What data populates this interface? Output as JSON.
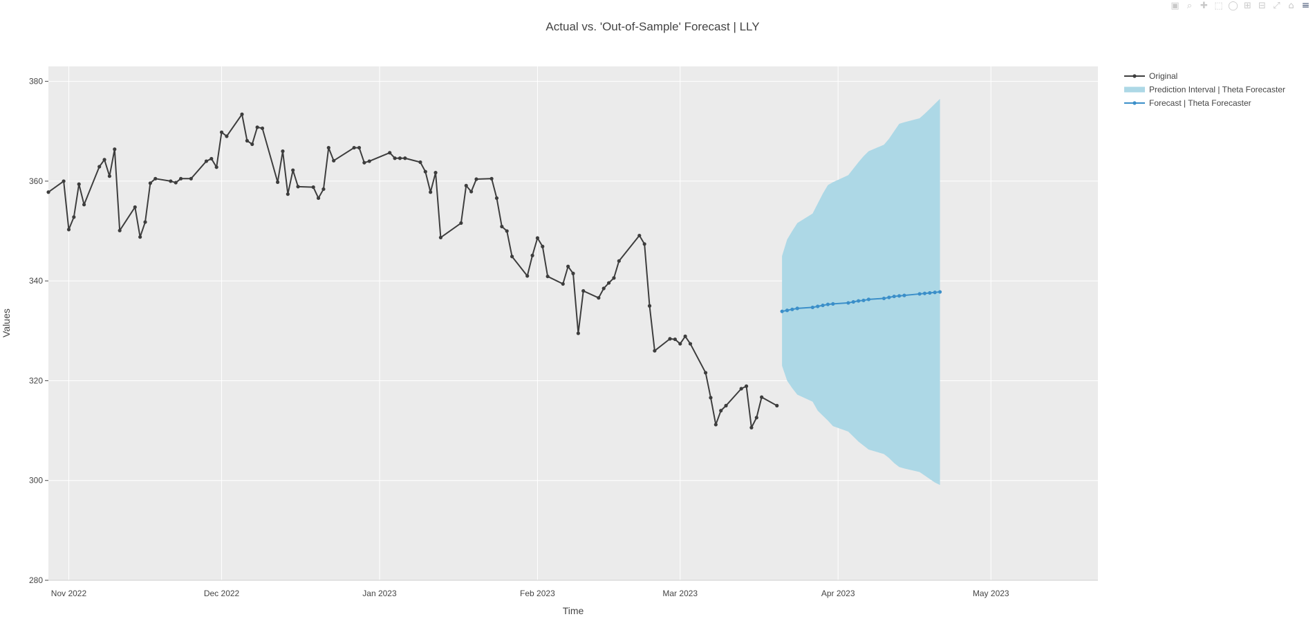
{
  "modebar": {
    "buttons": [
      {
        "name": "camera-icon",
        "glyph": "▣"
      },
      {
        "name": "zoom-icon",
        "glyph": "⌕"
      },
      {
        "name": "pan-icon",
        "glyph": "✚"
      },
      {
        "name": "box-select-icon",
        "glyph": "⬚"
      },
      {
        "name": "lasso-select-icon",
        "glyph": "◯"
      },
      {
        "name": "zoom-in-icon",
        "glyph": "⊞"
      },
      {
        "name": "zoom-out-icon",
        "glyph": "⊟"
      },
      {
        "name": "autoscale-icon",
        "glyph": "⤢"
      },
      {
        "name": "reset-axes-icon",
        "glyph": "⌂"
      },
      {
        "name": "plotly-logo-icon",
        "glyph": "≡"
      }
    ]
  },
  "colors": {
    "plot_bg": "#ebebeb",
    "grid": "#ffffff",
    "original": "#3d3d3d",
    "forecast": "#3b8fc9",
    "interval": "#add8e6"
  },
  "chart_data": {
    "type": "line",
    "title": "Actual vs. 'Out-of-Sample' Forecast | LLY",
    "xlabel": "Time",
    "ylabel": "Values",
    "xlim": [
      "2022-10-28",
      "2023-05-22"
    ],
    "ylim": [
      280,
      383
    ],
    "x_ticks": [
      {
        "date": "2022-11-01",
        "label": "Nov 2022"
      },
      {
        "date": "2022-12-01",
        "label": "Dec 2022"
      },
      {
        "date": "2023-01-01",
        "label": "Jan 2023"
      },
      {
        "date": "2023-02-01",
        "label": "Feb 2023"
      },
      {
        "date": "2023-03-01",
        "label": "Mar 2023"
      },
      {
        "date": "2023-04-01",
        "label": "Apr 2023"
      },
      {
        "date": "2023-05-01",
        "label": "May 2023"
      }
    ],
    "y_ticks": [
      280,
      300,
      320,
      340,
      360,
      380
    ],
    "grid": true,
    "legend_position": "top-right",
    "series": [
      {
        "name": "Original",
        "kind": "line-markers",
        "x": [
          "2022-10-28",
          "2022-10-31",
          "2022-11-01",
          "2022-11-02",
          "2022-11-03",
          "2022-11-04",
          "2022-11-07",
          "2022-11-08",
          "2022-11-09",
          "2022-11-10",
          "2022-11-11",
          "2022-11-14",
          "2022-11-15",
          "2022-11-16",
          "2022-11-17",
          "2022-11-18",
          "2022-11-21",
          "2022-11-22",
          "2022-11-23",
          "2022-11-25",
          "2022-11-28",
          "2022-11-29",
          "2022-11-30",
          "2022-12-01",
          "2022-12-02",
          "2022-12-05",
          "2022-12-06",
          "2022-12-07",
          "2022-12-08",
          "2022-12-09",
          "2022-12-12",
          "2022-12-13",
          "2022-12-14",
          "2022-12-15",
          "2022-12-16",
          "2022-12-19",
          "2022-12-20",
          "2022-12-21",
          "2022-12-22",
          "2022-12-23",
          "2022-12-27",
          "2022-12-28",
          "2022-12-29",
          "2022-12-30",
          "2023-01-03",
          "2023-01-04",
          "2023-01-05",
          "2023-01-06",
          "2023-01-09",
          "2023-01-10",
          "2023-01-11",
          "2023-01-12",
          "2023-01-13",
          "2023-01-17",
          "2023-01-18",
          "2023-01-19",
          "2023-01-20",
          "2023-01-23",
          "2023-01-24",
          "2023-01-25",
          "2023-01-26",
          "2023-01-27",
          "2023-01-30",
          "2023-01-31",
          "2023-02-01",
          "2023-02-02",
          "2023-02-03",
          "2023-02-06",
          "2023-02-07",
          "2023-02-08",
          "2023-02-09",
          "2023-02-10",
          "2023-02-13",
          "2023-02-14",
          "2023-02-15",
          "2023-02-16",
          "2023-02-17",
          "2023-02-21",
          "2023-02-22",
          "2023-02-23",
          "2023-02-24",
          "2023-02-27",
          "2023-02-28",
          "2023-03-01",
          "2023-03-02",
          "2023-03-03",
          "2023-03-06",
          "2023-03-07",
          "2023-03-08",
          "2023-03-09",
          "2023-03-10",
          "2023-03-13",
          "2023-03-14",
          "2023-03-15",
          "2023-03-16",
          "2023-03-17",
          "2023-03-20"
        ],
        "y": [
          357.8,
          360.0,
          350.3,
          352.8,
          359.4,
          355.3,
          362.9,
          364.3,
          361.0,
          366.4,
          350.1,
          354.8,
          348.8,
          351.8,
          359.6,
          360.5,
          360.0,
          359.7,
          360.5,
          360.5,
          364.0,
          364.5,
          362.8,
          369.8,
          369.0,
          373.4,
          368.1,
          367.4,
          370.8,
          370.6,
          359.8,
          366.0,
          357.4,
          362.2,
          358.9,
          358.8,
          356.6,
          358.4,
          366.7,
          364.1,
          366.7,
          366.7,
          363.7,
          364.0,
          365.7,
          364.6,
          364.6,
          364.6,
          363.8,
          361.9,
          357.8,
          361.7,
          348.7,
          351.6,
          359.1,
          357.9,
          360.4,
          360.5,
          356.6,
          350.9,
          350.0,
          344.9,
          341.0,
          345.1,
          348.6,
          346.9,
          340.9,
          339.4,
          342.9,
          341.5,
          329.5,
          338.0,
          336.6,
          338.5,
          339.6,
          340.6,
          344.0,
          349.1,
          347.4,
          335.0,
          326.0,
          328.4,
          328.3,
          327.4,
          328.9,
          327.4,
          321.6,
          316.6,
          311.2,
          314.0,
          315.0,
          318.4,
          318.9,
          310.6,
          312.6,
          316.7,
          315.0
        ]
      },
      {
        "name": "Prediction Interval | Theta Forecaster",
        "kind": "band",
        "x": [
          "2023-03-21",
          "2023-03-22",
          "2023-03-23",
          "2023-03-24",
          "2023-03-27",
          "2023-03-28",
          "2023-03-29",
          "2023-03-30",
          "2023-03-31",
          "2023-04-03",
          "2023-04-04",
          "2023-04-05",
          "2023-04-06",
          "2023-04-07",
          "2023-04-10",
          "2023-04-11",
          "2023-04-12",
          "2023-04-13",
          "2023-04-14",
          "2023-04-17",
          "2023-04-18",
          "2023-04-19",
          "2023-04-20",
          "2023-04-21"
        ],
        "lower": [
          323.0,
          320.0,
          318.5,
          317.2,
          315.8,
          314.0,
          313.0,
          312.0,
          310.9,
          309.8,
          308.8,
          307.8,
          307.0,
          306.2,
          305.3,
          304.5,
          303.5,
          302.7,
          302.4,
          301.7,
          301.0,
          300.3,
          299.6,
          299.1
        ],
        "upper": [
          345.0,
          348.3,
          350.0,
          351.6,
          353.5,
          355.5,
          357.5,
          359.2,
          359.8,
          361.2,
          362.5,
          363.8,
          365.0,
          366.0,
          367.3,
          368.5,
          370.0,
          371.5,
          371.8,
          372.6,
          373.5,
          374.5,
          375.5,
          376.5
        ]
      },
      {
        "name": "Forecast | Theta Forecaster",
        "kind": "line-markers",
        "x": [
          "2023-03-21",
          "2023-03-22",
          "2023-03-23",
          "2023-03-24",
          "2023-03-27",
          "2023-03-28",
          "2023-03-29",
          "2023-03-30",
          "2023-03-31",
          "2023-04-03",
          "2023-04-04",
          "2023-04-05",
          "2023-04-06",
          "2023-04-07",
          "2023-04-10",
          "2023-04-11",
          "2023-04-12",
          "2023-04-13",
          "2023-04-14",
          "2023-04-17",
          "2023-04-18",
          "2023-04-19",
          "2023-04-20",
          "2023-04-21"
        ],
        "y": [
          333.9,
          334.1,
          334.3,
          334.5,
          334.7,
          334.9,
          335.1,
          335.3,
          335.4,
          335.6,
          335.8,
          336.0,
          336.1,
          336.3,
          336.5,
          336.7,
          336.9,
          337.0,
          337.1,
          337.4,
          337.5,
          337.6,
          337.7,
          337.8
        ]
      }
    ]
  }
}
